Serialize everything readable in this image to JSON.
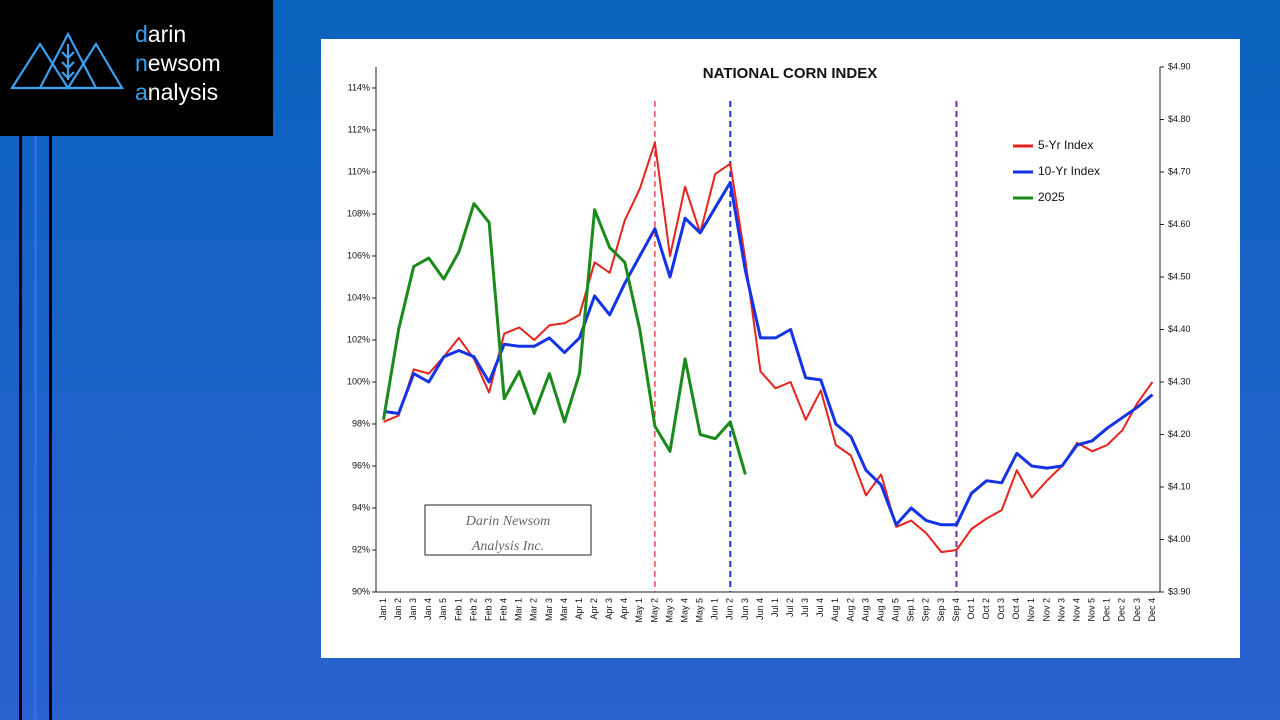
{
  "logo": [
    "darin",
    "newsom",
    "analysis"
  ],
  "chart_data": {
    "type": "line",
    "title": "NATIONAL CORN INDEX",
    "categories": [
      "Jan 1",
      "Jan 2",
      "Jan 3",
      "Jan 4",
      "Jan 5",
      "Feb 1",
      "Feb 2",
      "Feb 3",
      "Feb 4",
      "Mar 1",
      "Mar 2",
      "Mar 3",
      "Mar 4",
      "Apr 1",
      "Apr 2",
      "Apr 3",
      "Apr 4",
      "May 1",
      "May 2",
      "May 3",
      "May 4",
      "May 5",
      "Jun 1",
      "Jun 2",
      "Jun 3",
      "Jun 4",
      "Jul 1",
      "Jul 2",
      "Jul 3",
      "Jul 4",
      "Aug 1",
      "Aug 2",
      "Aug 3",
      "Aug 4",
      "Aug 5",
      "Sep 1",
      "Sep 2",
      "Sep 3",
      "Sep 4",
      "Oct 1",
      "Oct 2",
      "Oct 3",
      "Oct 4",
      "Nov 1",
      "Nov 2",
      "Nov 3",
      "Nov 4",
      "Nov 5",
      "Dec 1",
      "Dec 2",
      "Dec 3",
      "Dec 4"
    ],
    "series": [
      {
        "name": "5-Yr Index",
        "color": "#e8231c",
        "values": [
          98.1,
          98.4,
          100.6,
          100.4,
          101.2,
          102.1,
          101.1,
          99.5,
          102.3,
          102.6,
          102.0,
          102.7,
          102.8,
          103.2,
          105.7,
          105.2,
          107.7,
          109.2,
          111.4,
          106.0,
          109.3,
          107.1,
          109.9,
          110.4,
          105.8,
          100.5,
          99.7,
          100.0,
          98.2,
          99.6,
          97.0,
          96.5,
          94.6,
          95.6,
          93.1,
          93.4,
          92.8,
          91.9,
          92.0,
          93.0,
          93.5,
          93.9,
          95.8,
          94.5,
          95.3,
          96.0,
          97.1,
          96.7,
          97.0,
          97.7,
          99.0,
          100.0
        ]
      },
      {
        "name": "10-Yr Index",
        "color": "#1432e6",
        "values": [
          98.6,
          98.5,
          100.4,
          100.0,
          101.2,
          101.5,
          101.2,
          100.0,
          101.8,
          101.7,
          101.7,
          102.1,
          101.4,
          102.1,
          104.1,
          103.2,
          104.7,
          106.0,
          107.3,
          105.0,
          107.8,
          107.1,
          108.3,
          109.5,
          105.3,
          102.1,
          102.1,
          102.5,
          100.2,
          100.1,
          98.0,
          97.4,
          95.8,
          95.1,
          93.2,
          94.0,
          93.4,
          93.2,
          93.2,
          94.7,
          95.3,
          95.2,
          96.6,
          96.0,
          95.9,
          96.0,
          97.0,
          97.2,
          97.8,
          98.3,
          98.8,
          99.4
        ]
      },
      {
        "name": "2025",
        "color": "#1a8a1a",
        "values": [
          98.2,
          102.5,
          105.5,
          105.9,
          104.9,
          106.2,
          108.5,
          107.6,
          99.2,
          100.5,
          98.5,
          100.4,
          98.1,
          100.4,
          108.2,
          106.4,
          105.7,
          102.5,
          97.9,
          96.7,
          101.1,
          97.5,
          97.3,
          98.1,
          95.6,
          null,
          null,
          null,
          null,
          null,
          null,
          null,
          null,
          null,
          null,
          null,
          null,
          null,
          null,
          null,
          null,
          null,
          null,
          null,
          null,
          null,
          null,
          null,
          null,
          null,
          null,
          null
        ]
      }
    ],
    "ylim": [
      90,
      115
    ],
    "yticks": [
      {
        "value": 90,
        "label": "90%"
      },
      {
        "value": 92,
        "label": "92%"
      },
      {
        "value": 94,
        "label": "94%"
      },
      {
        "value": 96,
        "label": "96%"
      },
      {
        "value": 98,
        "label": "98%"
      },
      {
        "value": 100,
        "label": "100%"
      },
      {
        "value": 102,
        "label": "102%"
      },
      {
        "value": 104,
        "label": "104%"
      },
      {
        "value": 106,
        "label": "106%"
      },
      {
        "value": 108,
        "label": "108%"
      },
      {
        "value": 110,
        "label": "110%"
      },
      {
        "value": 112,
        "label": "112%"
      },
      {
        "value": 114,
        "label": "114%"
      }
    ],
    "y2lim": [
      3.9,
      4.9
    ],
    "y2ticks": [
      {
        "value": 3.9,
        "label": "$3.90"
      },
      {
        "value": 4.0,
        "label": "$4.00"
      },
      {
        "value": 4.1,
        "label": "$4.10"
      },
      {
        "value": 4.2,
        "label": "$4.20"
      },
      {
        "value": 4.3,
        "label": "$4.30"
      },
      {
        "value": 4.4,
        "label": "$4.40"
      },
      {
        "value": 4.5,
        "label": "$4.50"
      },
      {
        "value": 4.6,
        "label": "$4.60"
      },
      {
        "value": 4.7,
        "label": "$4.70"
      },
      {
        "value": 4.8,
        "label": "$4.80"
      },
      {
        "value": 4.9,
        "label": "$4.90"
      }
    ],
    "reference_lines": [
      {
        "at": "May 2",
        "color": "#e8231c"
      },
      {
        "at": "Jun 2",
        "color": "#1432e6"
      },
      {
        "at": "Sep 4",
        "color": "#7a2aa8"
      }
    ],
    "watermark": [
      "Darin Newsom",
      "Analysis Inc."
    ],
    "legend": "upper right",
    "grid": false
  }
}
